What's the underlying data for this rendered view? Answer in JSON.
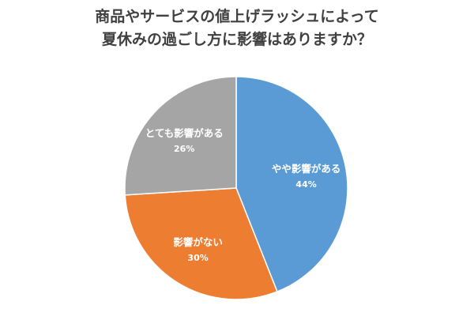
{
  "chart_data": {
    "type": "pie",
    "title_lines": [
      "商品やサービスの値上げラッシュによって",
      "夏休みの過ごし方に影響はありますか？"
    ],
    "categories": [
      "やや影響がある",
      "影響がない",
      "とても影響がある"
    ],
    "values": [
      44,
      30,
      26
    ],
    "value_labels": [
      "44%",
      "30%",
      "26%"
    ],
    "colors": [
      "#5b9bd5",
      "#ed7d31",
      "#a5a5a5"
    ],
    "start_angle": "12 o'clock",
    "direction": "clockwise",
    "legend": "none",
    "data_labels": "inside"
  }
}
